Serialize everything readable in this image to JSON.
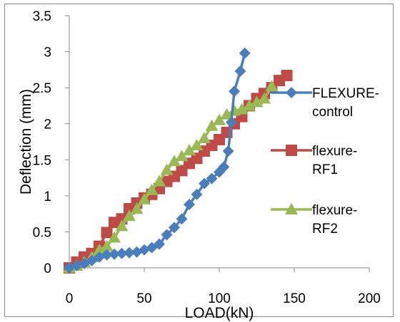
{
  "chart_data": {
    "type": "line",
    "title": "",
    "xlabel": "LOAD(kN)",
    "ylabel": "Deflection (mm)",
    "xlim": [
      0,
      200
    ],
    "ylim": [
      0,
      3.5
    ],
    "x_ticks": [
      "0",
      "50",
      "100",
      "150",
      "200"
    ],
    "y_ticks": [
      "0",
      "0.5",
      "1",
      "1.5",
      "2",
      "2.5",
      "3",
      "3.5"
    ],
    "grid": false,
    "legend_position": "right",
    "series": [
      {
        "name": "FLEXURE-control",
        "color": "#4a7ebb",
        "marker": "diamond",
        "points": [
          [
            0,
            0
          ],
          [
            5,
            0.03
          ],
          [
            10,
            0.06
          ],
          [
            15,
            0.1
          ],
          [
            20,
            0.15
          ],
          [
            25,
            0.18
          ],
          [
            30,
            0.19
          ],
          [
            35,
            0.2
          ],
          [
            40,
            0.21
          ],
          [
            45,
            0.22
          ],
          [
            50,
            0.25
          ],
          [
            55,
            0.28
          ],
          [
            60,
            0.33
          ],
          [
            65,
            0.46
          ],
          [
            70,
            0.56
          ],
          [
            75,
            0.68
          ],
          [
            80,
            0.88
          ],
          [
            85,
            1.02
          ],
          [
            90,
            1.17
          ],
          [
            95,
            1.24
          ],
          [
            100,
            1.33
          ],
          [
            103,
            1.4
          ],
          [
            106,
            1.62
          ],
          [
            108,
            2.02
          ],
          [
            110,
            2.45
          ],
          [
            114,
            2.73
          ],
          [
            117,
            2.98
          ]
        ]
      },
      {
        "name": "flexure-RF1",
        "color": "#be4b48",
        "marker": "square",
        "points": [
          [
            0,
            0
          ],
          [
            5,
            0.08
          ],
          [
            10,
            0.15
          ],
          [
            15,
            0.2
          ],
          [
            20,
            0.3
          ],
          [
            25,
            0.49
          ],
          [
            30,
            0.63
          ],
          [
            35,
            0.68
          ],
          [
            40,
            0.82
          ],
          [
            45,
            0.9
          ],
          [
            50,
            0.97
          ],
          [
            55,
            1.02
          ],
          [
            60,
            1.1
          ],
          [
            65,
            1.2
          ],
          [
            70,
            1.27
          ],
          [
            75,
            1.35
          ],
          [
            80,
            1.45
          ],
          [
            85,
            1.52
          ],
          [
            90,
            1.62
          ],
          [
            95,
            1.7
          ],
          [
            100,
            1.78
          ],
          [
            105,
            1.88
          ],
          [
            110,
            2.0
          ],
          [
            115,
            2.1
          ],
          [
            120,
            2.25
          ],
          [
            125,
            2.35
          ],
          [
            130,
            2.42
          ],
          [
            135,
            2.5
          ],
          [
            140,
            2.6
          ],
          [
            145,
            2.67
          ]
        ]
      },
      {
        "name": "flexure-RF2",
        "color": "#98b954",
        "marker": "triangle",
        "points": [
          [
            0,
            0
          ],
          [
            5,
            0.03
          ],
          [
            10,
            0.08
          ],
          [
            15,
            0.15
          ],
          [
            20,
            0.25
          ],
          [
            25,
            0.3
          ],
          [
            30,
            0.42
          ],
          [
            35,
            0.58
          ],
          [
            40,
            0.72
          ],
          [
            45,
            0.82
          ],
          [
            50,
            0.95
          ],
          [
            55,
            1.08
          ],
          [
            60,
            1.2
          ],
          [
            65,
            1.36
          ],
          [
            70,
            1.48
          ],
          [
            75,
            1.55
          ],
          [
            80,
            1.63
          ],
          [
            85,
            1.7
          ],
          [
            90,
            1.8
          ],
          [
            95,
            1.97
          ],
          [
            100,
            2.05
          ],
          [
            105,
            2.13
          ],
          [
            110,
            2.18
          ],
          [
            115,
            2.2
          ],
          [
            120,
            2.25
          ],
          [
            125,
            2.3
          ],
          [
            130,
            2.35
          ],
          [
            135,
            2.52
          ]
        ]
      }
    ]
  }
}
